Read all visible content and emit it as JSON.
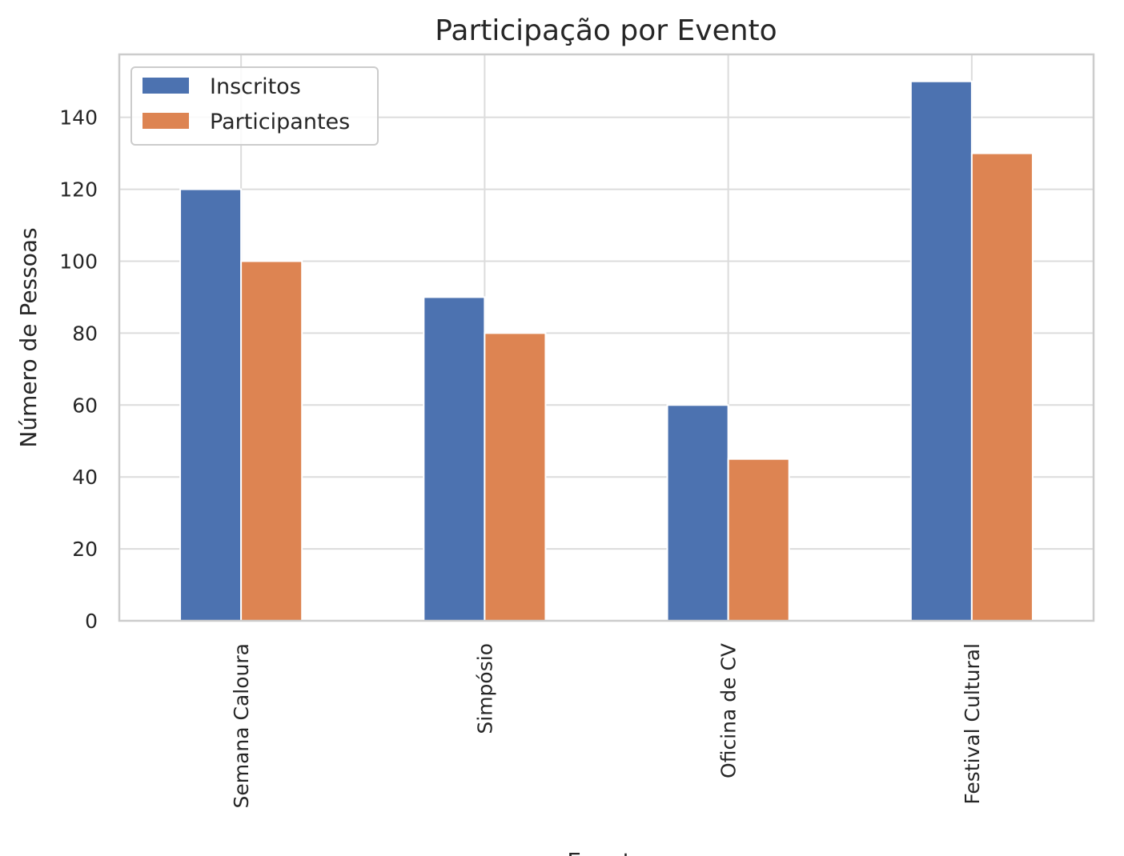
{
  "chart_data": {
    "type": "bar",
    "title": "Participação por Evento",
    "xlabel": "Evento",
    "ylabel": "Número de Pessoas",
    "categories": [
      "Semana Caloura",
      "Simpósio",
      "Oficina de CV",
      "Festival Cultural"
    ],
    "series": [
      {
        "name": "Inscritos",
        "values": [
          120,
          90,
          60,
          150
        ],
        "color": "#4c72b0"
      },
      {
        "name": "Participantes",
        "values": [
          100,
          80,
          45,
          130
        ],
        "color": "#dd8452"
      }
    ],
    "ylim": [
      0,
      157.5
    ],
    "yticks": [
      0,
      20,
      40,
      60,
      80,
      100,
      120,
      140
    ],
    "grid": true,
    "legend_position": "top-left"
  }
}
